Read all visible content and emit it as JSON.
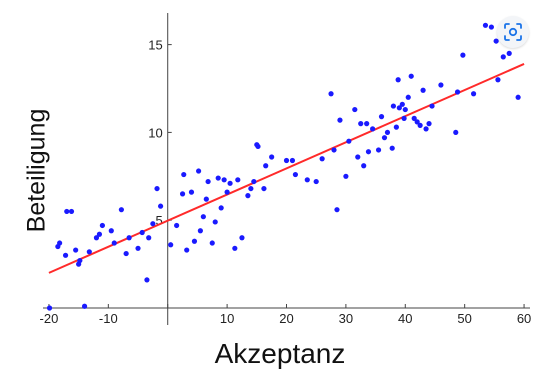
{
  "chart_data": {
    "type": "scatter",
    "xlabel": "Akzeptanz",
    "ylabel": "Beteiligung",
    "xlim": [
      -21,
      61
    ],
    "ylim": [
      0,
      16.8
    ],
    "xticks": [
      -20,
      -10,
      0,
      10,
      20,
      30,
      40,
      50,
      60
    ],
    "xtick_labels": [
      "-20",
      "-10",
      "",
      "10",
      "20",
      "30",
      "40",
      "50",
      "60"
    ],
    "yticks": [
      5,
      10,
      15
    ],
    "ytick_labels": [
      "5",
      "10",
      "15"
    ],
    "grid": false,
    "point_color": "#1a1aff",
    "line_color": "#ff2a2a",
    "points": [
      [
        -19.9,
        0.0
      ],
      [
        -18.5,
        3.5
      ],
      [
        -18.2,
        3.7
      ],
      [
        -17.2,
        3.0
      ],
      [
        -17.0,
        5.5
      ],
      [
        -16.2,
        5.5
      ],
      [
        -15.5,
        3.3
      ],
      [
        -15.0,
        2.5
      ],
      [
        -14.8,
        2.7
      ],
      [
        -14.0,
        0.1
      ],
      [
        -13.2,
        3.2
      ],
      [
        -12.0,
        4.0
      ],
      [
        -11.5,
        4.2
      ],
      [
        -11.0,
        4.7
      ],
      [
        -9.5,
        4.4
      ],
      [
        -9.0,
        3.7
      ],
      [
        -7.8,
        5.6
      ],
      [
        -7.0,
        3.1
      ],
      [
        -6.5,
        4.0
      ],
      [
        -5.0,
        3.4
      ],
      [
        -4.3,
        4.3
      ],
      [
        -3.5,
        1.6
      ],
      [
        -3.2,
        4.0
      ],
      [
        -2.5,
        4.8
      ],
      [
        -1.8,
        6.8
      ],
      [
        -1.2,
        5.8
      ],
      [
        0.5,
        3.6
      ],
      [
        1.5,
        4.7
      ],
      [
        2.5,
        6.5
      ],
      [
        2.7,
        7.6
      ],
      [
        3.2,
        3.3
      ],
      [
        4.0,
        6.6
      ],
      [
        4.5,
        3.8
      ],
      [
        5.2,
        7.8
      ],
      [
        5.5,
        4.4
      ],
      [
        6.0,
        5.2
      ],
      [
        6.5,
        6.2
      ],
      [
        6.8,
        7.2
      ],
      [
        7.5,
        3.7
      ],
      [
        8.0,
        4.9
      ],
      [
        8.5,
        7.4
      ],
      [
        9.0,
        5.7
      ],
      [
        9.5,
        7.3
      ],
      [
        10.0,
        6.6
      ],
      [
        10.5,
        7.1
      ],
      [
        11.3,
        3.4
      ],
      [
        11.8,
        7.3
      ],
      [
        12.5,
        4.0
      ],
      [
        13.5,
        6.4
      ],
      [
        14.0,
        6.8
      ],
      [
        14.5,
        7.2
      ],
      [
        15.0,
        9.3
      ],
      [
        15.2,
        9.2
      ],
      [
        16.2,
        6.8
      ],
      [
        16.5,
        8.1
      ],
      [
        17.5,
        8.6
      ],
      [
        20.0,
        8.4
      ],
      [
        21.0,
        8.4
      ],
      [
        21.5,
        7.6
      ],
      [
        23.5,
        7.3
      ],
      [
        25.0,
        7.2
      ],
      [
        26.0,
        8.5
      ],
      [
        27.5,
        12.2
      ],
      [
        28.0,
        9.0
      ],
      [
        28.5,
        5.6
      ],
      [
        29.0,
        10.7
      ],
      [
        30.0,
        7.5
      ],
      [
        30.5,
        9.5
      ],
      [
        31.5,
        11.3
      ],
      [
        32.0,
        8.6
      ],
      [
        32.5,
        10.5
      ],
      [
        33.0,
        8.1
      ],
      [
        33.5,
        10.5
      ],
      [
        33.8,
        8.9
      ],
      [
        34.5,
        10.2
      ],
      [
        35.5,
        9.0
      ],
      [
        36.0,
        10.9
      ],
      [
        36.5,
        9.7
      ],
      [
        37.0,
        10.0
      ],
      [
        37.8,
        9.1
      ],
      [
        38.0,
        11.5
      ],
      [
        38.5,
        10.3
      ],
      [
        38.8,
        13.0
      ],
      [
        39.0,
        11.4
      ],
      [
        39.5,
        11.6
      ],
      [
        39.8,
        10.8
      ],
      [
        40.0,
        11.3
      ],
      [
        40.5,
        12.0
      ],
      [
        41.0,
        13.2
      ],
      [
        41.5,
        10.8
      ],
      [
        42.0,
        10.6
      ],
      [
        42.5,
        10.4
      ],
      [
        43.0,
        12.4
      ],
      [
        43.5,
        10.2
      ],
      [
        44.0,
        10.5
      ],
      [
        44.5,
        11.5
      ],
      [
        46.0,
        12.7
      ],
      [
        48.5,
        10.0
      ],
      [
        48.8,
        12.3
      ],
      [
        49.7,
        14.4
      ],
      [
        51.5,
        12.2
      ],
      [
        53.5,
        16.1
      ],
      [
        54.5,
        16.0
      ],
      [
        55.3,
        15.2
      ],
      [
        55.6,
        13.0
      ],
      [
        56.5,
        14.3
      ],
      [
        57.5,
        14.5
      ],
      [
        59.0,
        12.0
      ],
      [
        59.3,
        15.9
      ]
    ],
    "regression_line": {
      "x": [
        -20,
        60
      ],
      "y": [
        2.0,
        13.9
      ]
    }
  },
  "ui": {
    "lens_icon": "visual-search-icon"
  }
}
